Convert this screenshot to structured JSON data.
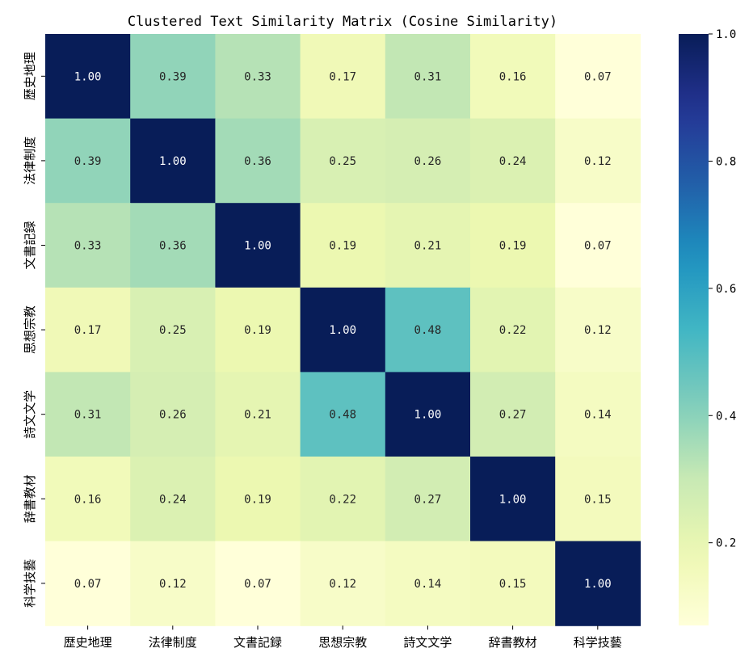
{
  "chart_data": {
    "type": "heatmap",
    "title": "Clustered Text Similarity Matrix (Cosine Similarity)",
    "xlabel": "",
    "ylabel": "",
    "x_categories": [
      "歴史地理",
      "法律制度",
      "文書記録",
      "思想宗教",
      "詩文文学",
      "辞書教材",
      "科学技藝"
    ],
    "y_categories": [
      "歴史地理",
      "法律制度",
      "文書記録",
      "思想宗教",
      "詩文文学",
      "辞書教材",
      "科学技藝"
    ],
    "values": [
      [
        1.0,
        0.39,
        0.33,
        0.17,
        0.31,
        0.16,
        0.07
      ],
      [
        0.39,
        1.0,
        0.36,
        0.25,
        0.26,
        0.24,
        0.12
      ],
      [
        0.33,
        0.36,
        1.0,
        0.19,
        0.21,
        0.19,
        0.07
      ],
      [
        0.17,
        0.25,
        0.19,
        1.0,
        0.48,
        0.22,
        0.12
      ],
      [
        0.31,
        0.26,
        0.21,
        0.48,
        1.0,
        0.27,
        0.14
      ],
      [
        0.16,
        0.24,
        0.19,
        0.22,
        0.27,
        1.0,
        0.15
      ],
      [
        0.07,
        0.12,
        0.07,
        0.12,
        0.14,
        0.15,
        1.0
      ]
    ],
    "value_format": "0.00",
    "colorscale": "YlGnBu",
    "colorbar": {
      "range": [
        0.07,
        1.0
      ],
      "ticks": [
        0.2,
        0.4,
        0.6,
        0.8,
        1.0
      ],
      "tick_labels": [
        "0.2",
        "0.4",
        "0.6",
        "0.8",
        "1.0"
      ]
    },
    "grid": false,
    "legend": "right colorbar"
  }
}
